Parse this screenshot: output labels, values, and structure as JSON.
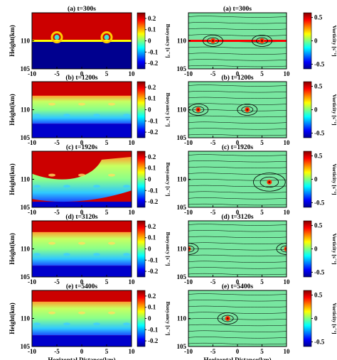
{
  "colors": {
    "jet": [
      "#00008f",
      "#0000ff",
      "#0080ff",
      "#00ffff",
      "#80ff80",
      "#ffff00",
      "#ff8000",
      "#ff0000",
      "#800000"
    ],
    "background_green": "#78e6a0",
    "contour": "#000000"
  },
  "chart_data": [
    {
      "type": "heatmap",
      "panel": "left",
      "row": 0,
      "title": "(a) t=300s",
      "xlabel": "",
      "ylabel": "Height(km)",
      "xlim": [
        -10,
        10
      ],
      "ylim": [
        105,
        115
      ],
      "x_ticks": [
        "-10",
        "-5",
        "0",
        "5",
        "10"
      ],
      "y_ticks": [
        "105",
        "110"
      ],
      "colorbar": {
        "label": "Buoyancy [s⁻²]",
        "range": [
          -0.25,
          0.25
        ],
        "ticks": [
          "0.2",
          "0.1",
          "0",
          "-0.1",
          "-0.2"
        ]
      },
      "vortex_centers_x": [
        -5,
        5
      ],
      "interface_y": 110
    },
    {
      "type": "heatmap",
      "panel": "right",
      "row": 0,
      "title": "(a) t=300s",
      "xlabel": "",
      "ylabel": "",
      "xlim": [
        -10,
        10
      ],
      "ylim": [
        105,
        115
      ],
      "x_ticks": [
        "-10",
        "-5",
        "0",
        "5",
        "10"
      ],
      "y_ticks": [
        "105",
        "110"
      ],
      "colorbar": {
        "label": "Vorticity [s⁻¹]",
        "range": [
          -0.6,
          0.6
        ],
        "ticks": [
          "0.5",
          "0",
          "-0.5"
        ]
      },
      "vortex_centers_x": [
        -5,
        5
      ],
      "interface_y": 110
    },
    {
      "type": "heatmap",
      "panel": "left",
      "row": 1,
      "title": "(b) t=1200s",
      "xlabel": "",
      "ylabel": "Height(km)",
      "xlim": [
        -10,
        10
      ],
      "ylim": [
        105,
        115
      ],
      "x_ticks": [
        "-10",
        "-5",
        "0",
        "5",
        "10"
      ],
      "y_ticks": [
        "105",
        "110"
      ],
      "colorbar": {
        "label": "Buoyancy [s⁻²]",
        "range": [
          -0.25,
          0.25
        ],
        "ticks": [
          "0.2",
          "0.1",
          "0",
          "-0.1",
          "-0.2"
        ]
      },
      "mixing_layer_km": [
        107.5,
        112.5
      ]
    },
    {
      "type": "heatmap",
      "panel": "right",
      "row": 1,
      "title": "(b) t=1200s",
      "xlabel": "",
      "ylabel": "",
      "xlim": [
        -10,
        10
      ],
      "ylim": [
        105,
        115
      ],
      "x_ticks": [
        "-10",
        "-5",
        "0",
        "5",
        "10"
      ],
      "y_ticks": [
        "105",
        "110"
      ],
      "colorbar": {
        "label": "Vorticity [s⁻¹]",
        "range": [
          -0.6,
          0.6
        ],
        "ticks": [
          "0.5",
          "0",
          "-0.5"
        ]
      },
      "vortex_centers_x": [
        -8,
        2
      ]
    },
    {
      "type": "heatmap",
      "panel": "left",
      "row": 2,
      "title": "(c) t=1920s",
      "xlabel": "",
      "ylabel": "Height(km)",
      "xlim": [
        -10,
        10
      ],
      "ylim": [
        105,
        115
      ],
      "x_ticks": [
        "-10",
        "-5",
        "0",
        "5",
        "10"
      ],
      "y_ticks": [
        "105",
        "110"
      ],
      "colorbar": {
        "label": "Buoyancy [s⁻²]",
        "range": [
          -0.25,
          0.25
        ],
        "ticks": [
          "0.2",
          "0.1",
          "0",
          "-0.1",
          "-0.2"
        ]
      },
      "mixing_layer_km": [
        106,
        113.5
      ]
    },
    {
      "type": "heatmap",
      "panel": "right",
      "row": 2,
      "title": "(c) t=1920s",
      "xlabel": "",
      "ylabel": "",
      "xlim": [
        -10,
        10
      ],
      "ylim": [
        105,
        115
      ],
      "x_ticks": [
        "-10",
        "-5",
        "0",
        "5",
        "10"
      ],
      "y_ticks": [
        "105",
        "110"
      ],
      "colorbar": {
        "label": "Vorticity [s⁻¹]",
        "range": [
          -0.6,
          0.6
        ],
        "ticks": [
          "0.5",
          "0",
          "-0.5"
        ]
      },
      "vortex_centers_x": [
        6.5
      ]
    },
    {
      "type": "heatmap",
      "panel": "left",
      "row": 3,
      "title": "(d) t=3120s",
      "xlabel": "",
      "ylabel": "Height(km)",
      "xlim": [
        -10,
        10
      ],
      "ylim": [
        105,
        115
      ],
      "x_ticks": [
        "-10",
        "-5",
        "0",
        "5",
        "10"
      ],
      "y_ticks": [
        "105",
        "110"
      ],
      "colorbar": {
        "label": "Buoyancy [s⁻²]",
        "range": [
          -0.25,
          0.25
        ],
        "ticks": [
          "0.2",
          "0.1",
          "0",
          "-0.1",
          "-0.2"
        ]
      },
      "mixing_layer_km": [
        107,
        113
      ]
    },
    {
      "type": "heatmap",
      "panel": "right",
      "row": 3,
      "title": "(d) t=3120s",
      "xlabel": "",
      "ylabel": "",
      "xlim": [
        -10,
        10
      ],
      "ylim": [
        105,
        115
      ],
      "x_ticks": [
        "-10",
        "-5",
        "0",
        "5",
        "10"
      ],
      "y_ticks": [
        "105",
        "110"
      ],
      "colorbar": {
        "label": "Vorticity [s⁻¹]",
        "range": [
          -0.6,
          0.6
        ],
        "ticks": [
          "0.5",
          "0",
          "-0.5"
        ]
      },
      "vortex_centers_x": [
        -10,
        10
      ]
    },
    {
      "type": "heatmap",
      "panel": "left",
      "row": 4,
      "title": "(e) t=5400s",
      "xlabel": "Horizontal Distance(km)",
      "ylabel": "Height(km)",
      "xlim": [
        -10,
        10
      ],
      "ylim": [
        105,
        115
      ],
      "x_ticks": [
        "-10",
        "-5",
        "0",
        "5",
        "10"
      ],
      "y_ticks": [
        "105",
        "110"
      ],
      "colorbar": {
        "label": "Buoyancy [s⁻²]",
        "range": [
          -0.25,
          0.25
        ],
        "ticks": [
          "0.2",
          "0.1",
          "0",
          "-0.1",
          "-0.2"
        ]
      },
      "mixing_layer_km": [
        107,
        113
      ]
    },
    {
      "type": "heatmap",
      "panel": "right",
      "row": 4,
      "title": "(e) t=5400s",
      "xlabel": "Horizontal Distance(km)",
      "ylabel": "",
      "xlim": [
        -10,
        10
      ],
      "ylim": [
        105,
        115
      ],
      "x_ticks": [
        "-10",
        "-5",
        "0",
        "5",
        "10"
      ],
      "y_ticks": [
        "105",
        "110"
      ],
      "colorbar": {
        "label": "Vorticity [s⁻¹]",
        "range": [
          -0.6,
          0.6
        ],
        "ticks": [
          "0.5",
          "0",
          "-0.5"
        ]
      },
      "vortex_centers_x": [
        -2
      ]
    }
  ]
}
